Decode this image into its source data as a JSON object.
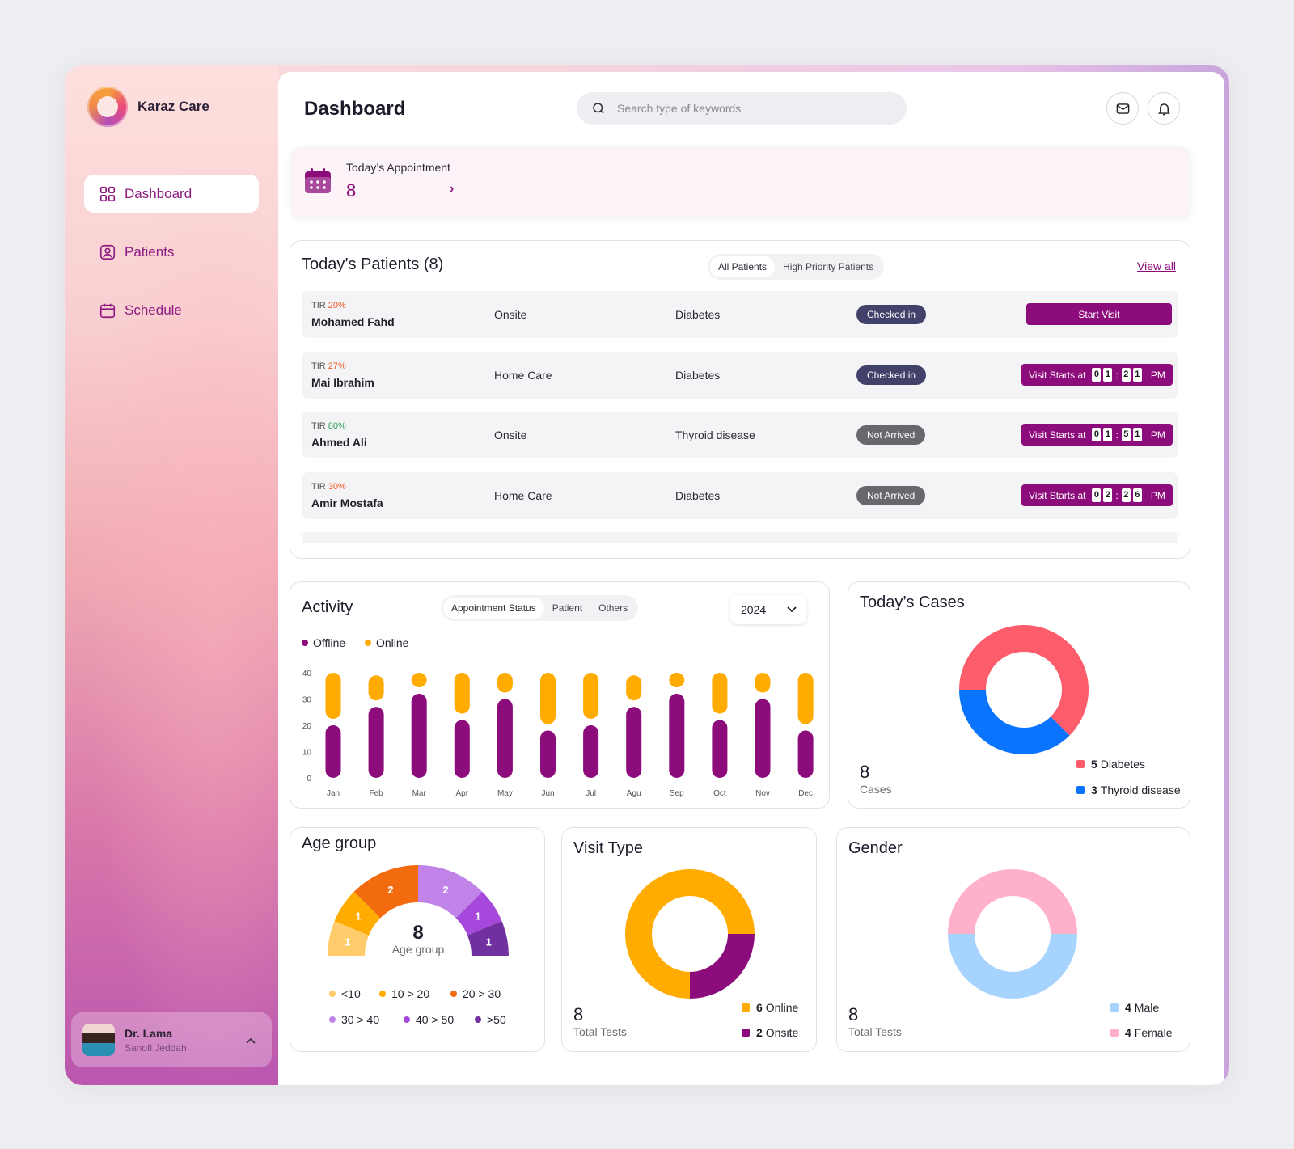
{
  "brand": {
    "name": "Karaz Care"
  },
  "nav": [
    {
      "label": "Dashboard",
      "icon": "grid-icon",
      "active": true
    },
    {
      "label": "Patients",
      "icon": "user-square-icon",
      "active": false
    },
    {
      "label": "Schedule",
      "icon": "calendar-icon",
      "active": false
    }
  ],
  "user": {
    "name": "Dr. Lama",
    "org": "Sanofi Jeddah"
  },
  "header": {
    "title": "Dashboard",
    "search_placeholder": "Search type of keywords"
  },
  "appointment": {
    "label": "Today’s Appointment",
    "count": "8",
    "arrow": "›"
  },
  "patients": {
    "title": "Today’s Patients (8)",
    "tabs": [
      "All Patients",
      "High Priority Patients"
    ],
    "view_all": "View all",
    "rows": [
      {
        "tir_label": "TIR",
        "tir": "20%",
        "tir_color": "#f05a28",
        "name": "Mohamed Fahd",
        "type": "Onsite",
        "diagnosis": "Diabetes",
        "status": "Checked in",
        "action": "Start Visit"
      },
      {
        "tir_label": "TIR",
        "tir": "27%",
        "tir_color": "#f05a28",
        "name": "Mai Ibrahim",
        "type": "Home Care",
        "diagnosis": "Diabetes",
        "status": "Checked in",
        "action_label": "Visit Starts at",
        "time": [
          "0",
          "1",
          "2",
          "1"
        ],
        "ampm": "PM"
      },
      {
        "tir_label": "TIR",
        "tir": "80%",
        "tir_color": "#2f9d57",
        "name": "Ahmed Ali",
        "type": "Onsite",
        "diagnosis": "Thyroid disease",
        "status": "Not Arrived",
        "action_label": "Visit Starts at",
        "time": [
          "0",
          "1",
          "5",
          "1"
        ],
        "ampm": "PM"
      },
      {
        "tir_label": "TIR",
        "tir": "30%",
        "tir_color": "#f05a28",
        "name": "Amir Mostafa",
        "type": "Home Care",
        "diagnosis": "Diabetes",
        "status": "Not Arrived",
        "action_label": "Visit Starts at",
        "time": [
          "0",
          "2",
          "2",
          "6"
        ],
        "ampm": "PM"
      }
    ]
  },
  "activity": {
    "title": "Activity",
    "tabs": [
      "Appointment Status",
      "Patient",
      "Others"
    ],
    "year": "2024",
    "legend": [
      "Offline",
      "Online"
    ]
  },
  "cases": {
    "title": "Today’s Cases",
    "count": "8",
    "count_label": "Cases",
    "legend": [
      {
        "num": "5",
        "label": "Diabetes"
      },
      {
        "num": "3",
        "label": "Thyroid disease"
      }
    ]
  },
  "age_group": {
    "title": "Age group",
    "center_num": "8",
    "center_label": "Age group",
    "legend": [
      "<10",
      "10 > 20",
      "20 > 30",
      "30 > 40",
      "40 > 50",
      ">50"
    ]
  },
  "visit_type": {
    "title": "Visit Type",
    "count": "8",
    "count_label": "Total Tests",
    "legend": [
      {
        "num": "6",
        "label": "Online"
      },
      {
        "num": "2",
        "label": "Onsite"
      }
    ]
  },
  "gender": {
    "title": "Gender",
    "count": "8",
    "count_label": "Total Tests",
    "legend": [
      {
        "num": "4",
        "label": "Male"
      },
      {
        "num": "4",
        "label": "Female"
      }
    ]
  },
  "colors": {
    "brand": "#8d0c7c",
    "online": "#ffab00",
    "diabetes": "#fd5d6b",
    "thyroid": "#0a74ff",
    "male": "#a7d3ff",
    "female": "#ffb1cc"
  },
  "chart_data": [
    {
      "type": "bar",
      "title": "Activity",
      "categories": [
        "Jan",
        "Feb",
        "Mar",
        "Apr",
        "May",
        "Jun",
        "Jul",
        "Agu",
        "Sep",
        "Oct",
        "Nov",
        "Dec"
      ],
      "series": [
        {
          "name": "Offline",
          "values": [
            20,
            27,
            32,
            22,
            30,
            18,
            20,
            27,
            32,
            22,
            30,
            18
          ]
        },
        {
          "name": "Online",
          "values": [
            20,
            12,
            8,
            18,
            10,
            22,
            20,
            12,
            8,
            18,
            10,
            22
          ]
        }
      ],
      "stacked": true,
      "ylim": [
        0,
        40
      ],
      "yticks": [
        "40",
        "30",
        "20",
        "10",
        "0"
      ]
    },
    {
      "type": "pie",
      "title": "Today’s Cases",
      "categories": [
        "Diabetes",
        "Thyroid disease"
      ],
      "values": [
        5,
        3
      ]
    },
    {
      "type": "pie",
      "title": "Age group",
      "categories": [
        "<10",
        "10 > 20",
        "20 > 30",
        "30 > 40",
        "40 > 50",
        ">50"
      ],
      "values": [
        1,
        1,
        2,
        2,
        1,
        1
      ],
      "colors": [
        "#ffcb6b",
        "#ffab00",
        "#f26b0f",
        "#c084e8",
        "#a748dc",
        "#7030a0"
      ]
    },
    {
      "type": "pie",
      "title": "Visit Type",
      "categories": [
        "Online",
        "Onsite"
      ],
      "values": [
        6,
        2
      ]
    },
    {
      "type": "pie",
      "title": "Gender",
      "categories": [
        "Male",
        "Female"
      ],
      "values": [
        4,
        4
      ]
    }
  ]
}
